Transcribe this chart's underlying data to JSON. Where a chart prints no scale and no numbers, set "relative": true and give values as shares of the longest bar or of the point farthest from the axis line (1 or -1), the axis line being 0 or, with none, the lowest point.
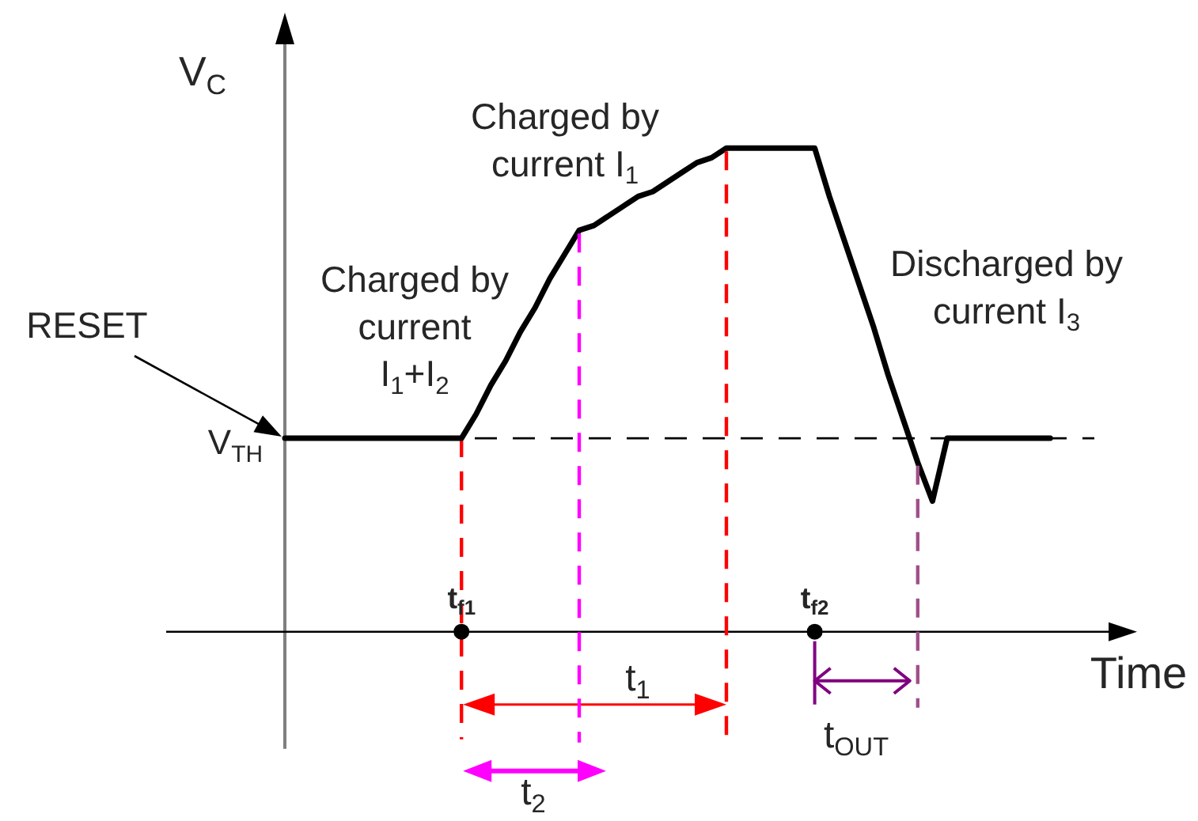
{
  "chart_data": {
    "type": "line",
    "relative": true,
    "xlabel": "Time",
    "ylabel": "V$_{C}$",
    "categories": [
      null,
      null,
      null,
      null,
      null,
      null,
      null,
      null,
      null,
      null,
      null,
      null,
      "t$_{f1}$",
      null,
      null,
      null,
      null,
      null,
      null,
      null,
      null,
      null,
      null,
      null,
      null,
      null,
      null,
      null,
      null,
      null,
      null,
      null,
      null,
      null,
      null,
      null,
      "t$_{f2}$",
      null,
      null,
      null,
      null,
      null,
      null,
      null,
      null,
      null,
      null,
      null,
      null,
      null,
      null,
      null,
      null,
      null,
      null,
      null
    ],
    "series": [
      {
        "color": "#000000",
        "values": [
          0.4,
          0.4,
          0.4,
          0.4,
          0.4,
          0.4,
          0.4,
          0.4,
          0.4,
          0.4,
          0.4,
          0.4,
          0.4,
          0.45,
          0.51,
          0.56,
          0.62,
          0.67,
          0.73,
          0.78,
          0.83,
          0.84,
          0.86,
          0.88,
          0.9,
          0.91,
          0.93,
          0.95,
          0.97,
          0.98,
          1,
          1,
          1,
          1,
          1,
          1,
          1,
          0.9,
          0.81,
          0.72,
          0.63,
          0.53,
          0.44,
          0.35,
          0.27,
          0.4,
          0.4,
          0.4,
          0.4,
          0.4,
          0.4,
          0.4,
          0.4,
          null,
          null,
          null
        ]
      },
      {
        "type": "scatter",
        "color": "#000000",
        "marker": "circle",
        "x": [
          "t$_{f1}$",
          "t$_{f2}$"
        ],
        "values": [
          0,
          0
        ]
      }
    ],
    "ref_lines": [
      {
        "axis": "y",
        "value": 0.4,
        "label": "V$_{TH}$",
        "color": "#000000",
        "line_style": "dashed"
      },
      {
        "axis": "x",
        "value": "t$_{f1}$",
        "color": "#ff0000",
        "line_style": "dashed"
      }
    ],
    "annotations": [
      "Charged by\ncurrent\nI$_{1}$+I$_{2}$",
      "Charged by\ncurrent I$_{1}$",
      "Discharged by\ncurrent I$_{3}$",
      "RESET",
      "t$_{1}$",
      "t$_{2}$",
      "t$_{OUT}$"
    ]
  }
}
